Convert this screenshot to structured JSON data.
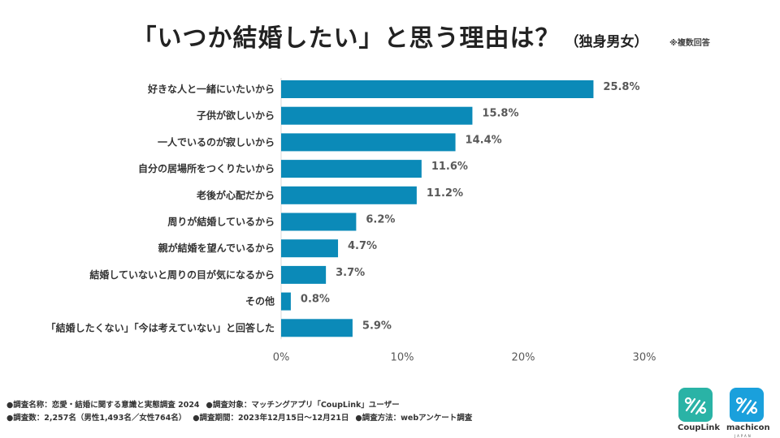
{
  "header": {
    "title": "「いつか結婚したい」と思う理由は？",
    "subtitle": "（独身男女）",
    "note": "※複数回答"
  },
  "chart_data": {
    "type": "bar",
    "orientation": "horizontal",
    "categories": [
      "好きな人と一緒にいたいから",
      "子供が欲しいから",
      "一人でいるのが寂しいから",
      "自分の居場所をつくりたいから",
      "老後が心配だから",
      "周りが結婚しているから",
      "親が結婚を望んでいるから",
      "結婚していないと周りの目が気になるから",
      "その他",
      "「結婚したくない」「今は考えていない」と回答した"
    ],
    "values": [
      25.8,
      15.8,
      14.4,
      11.6,
      11.2,
      6.2,
      4.7,
      3.7,
      0.8,
      5.9
    ],
    "value_labels": [
      "25.8%",
      "15.8%",
      "14.4%",
      "11.6%",
      "11.2%",
      "6.2%",
      "4.7%",
      "3.7%",
      "0.8%",
      "5.9%"
    ],
    "xlim": [
      0,
      30
    ],
    "xticks": [
      0,
      10,
      20,
      30
    ],
    "xtick_labels": [
      "0%",
      "10%",
      "20%",
      "30%"
    ],
    "bar_color": "#0b8ab8",
    "grid": false
  },
  "footer": {
    "line1": [
      "●調査名称：恋愛・結婚に関する意識と実態調査 2024",
      "●調査対象：マッチングアプリ「CoupLink」ユーザー"
    ],
    "line2": [
      "●調査数：2,257名（男性1,493名／女性764名）",
      "●調査期間：2023年12月15日～12月21日",
      "●調査方法：webアンケート調査"
    ]
  },
  "logos": {
    "couplink": {
      "name": "CoupLink",
      "color": "#2ab3a6"
    },
    "machicon": {
      "name": "machicon",
      "sub": "JAPAN",
      "color": "#1aa0dc"
    }
  }
}
